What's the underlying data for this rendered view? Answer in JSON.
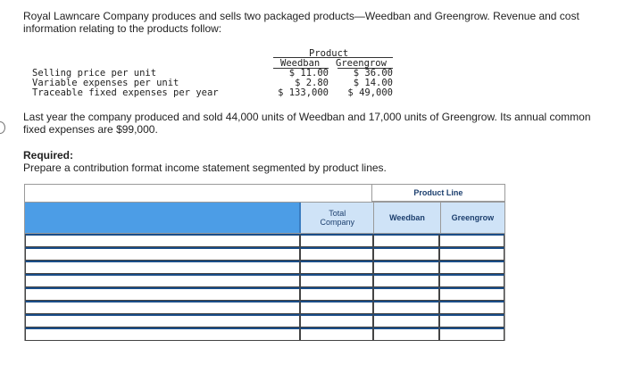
{
  "intro": "Royal Lawncare Company produces and sells two packaged products—Weedban and Greengrow. Revenue and cost information relating to the products follow:",
  "product_table": {
    "group_header": "Product",
    "col1": "Weedban",
    "col2": "Greengrow",
    "rows": [
      {
        "label": "Selling price per unit",
        "v1": "$ 11.00",
        "v2": "$ 36.00"
      },
      {
        "label": "Variable expenses per unit",
        "v1": "$ 2.80",
        "v2": "$ 14.00"
      },
      {
        "label": "Traceable fixed expenses per year",
        "v1": "$ 133,000",
        "v2": "$ 49,000"
      }
    ]
  },
  "paragraph": "Last year the company produced and sold 44,000 units of Weedban and 17,000 units of Greengrow. Its annual common fixed expenses are $99,000.",
  "required": {
    "heading": "Required:",
    "text": "Prepare a contribution format income statement segmented by product lines."
  },
  "statement": {
    "group_header": "Product Line",
    "total_line1": "Total",
    "total_line2": "Company",
    "weedban": "Weedban",
    "greengrow": "Greengrow",
    "rows": 8
  },
  "colors": {
    "header_blue": "#4c9de6",
    "header_light": "#cfe3f7",
    "row_rule": "#1a4d88"
  }
}
